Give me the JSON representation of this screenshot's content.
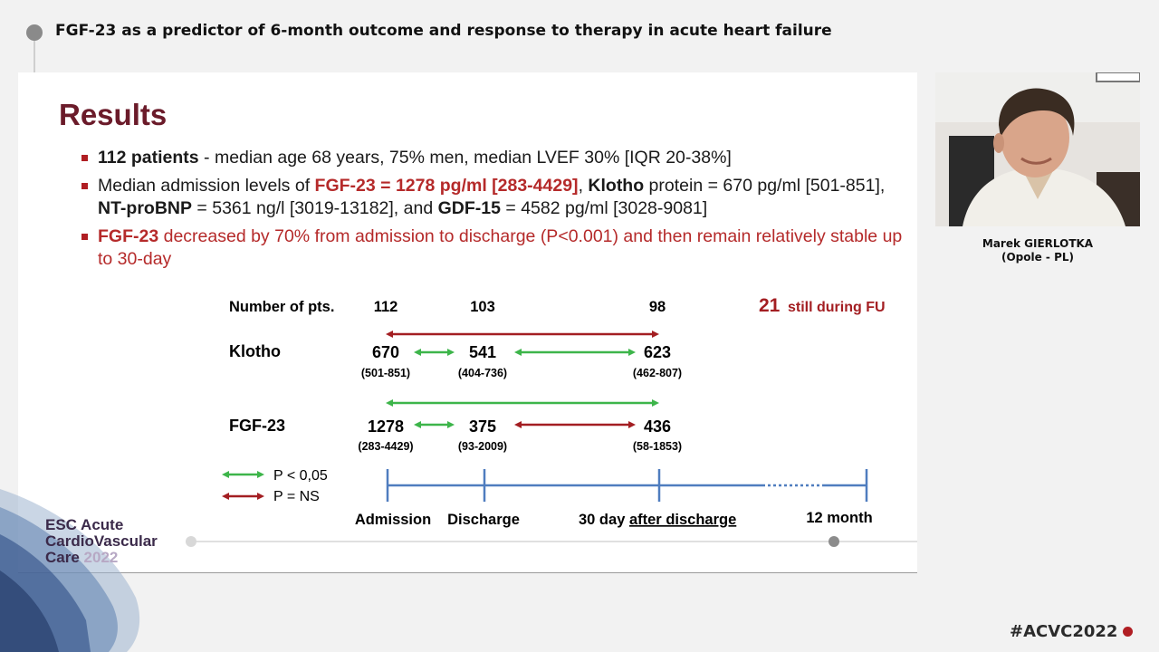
{
  "header": {
    "session_title": "FGF-23 as a predictor of 6-month outcome and response to therapy in acute heart failure"
  },
  "slide": {
    "title": "Results",
    "bullet1": {
      "bold": "112 patients",
      "rest": " - median age 68 years, 75% men, median LVEF 30% [IQR 20-38%]"
    },
    "bullet2": {
      "p1": "Median admission levels of ",
      "p2": "FGF-23 = 1278 pg/ml [283-4429]",
      "p3": ", ",
      "p4": "Klotho",
      "p5": " protein = 670 pg/ml [501-851],  ",
      "p6": "NT-proBNP",
      "p7": " = 5361 ng/l [3019-13182], and ",
      "p8": "GDF-15",
      "p9": " = 4582 pg/ml [3028-9081]"
    },
    "bullet3": {
      "bold": "FGF-23",
      "rest": " decreased by 70% from admission to discharge (P<0.001) and then remain relatively stable up to 30-day"
    },
    "diagram": {
      "pts_label": "Number of pts.",
      "pts": [
        "112",
        "103",
        "98"
      ],
      "fu_count": "21",
      "fu_text": "still during FU",
      "klotho_label": "Klotho",
      "klotho_values": [
        "670",
        "541",
        "623"
      ],
      "klotho_ranges": [
        "(501-851)",
        "(404-736)",
        "(462-807)"
      ],
      "fgf_label": "FGF-23",
      "fgf_values": [
        "1278",
        "375",
        "436"
      ],
      "fgf_ranges": [
        "(283-4429)",
        "(93-2009)",
        "(58-1853)"
      ],
      "legend_sig": "P < 0,05",
      "legend_ns": "P = NS",
      "timeline": [
        "Admission",
        "Discharge",
        "30 day ",
        "after discharge",
        "12 month"
      ],
      "colors": {
        "significant": "#3db54a",
        "non_significant": "#a31e22",
        "timeline": "#4f7dbf"
      }
    }
  },
  "logo": {
    "line1": "ESC Acute",
    "line2": "CardioVascular",
    "line3": "Care ",
    "year": "2022"
  },
  "video": {
    "speaker_name": "Marek GIERLOTKA",
    "speaker_location": "(Opole - PL)"
  },
  "footer": {
    "hashtag": "#ACVC2022"
  }
}
